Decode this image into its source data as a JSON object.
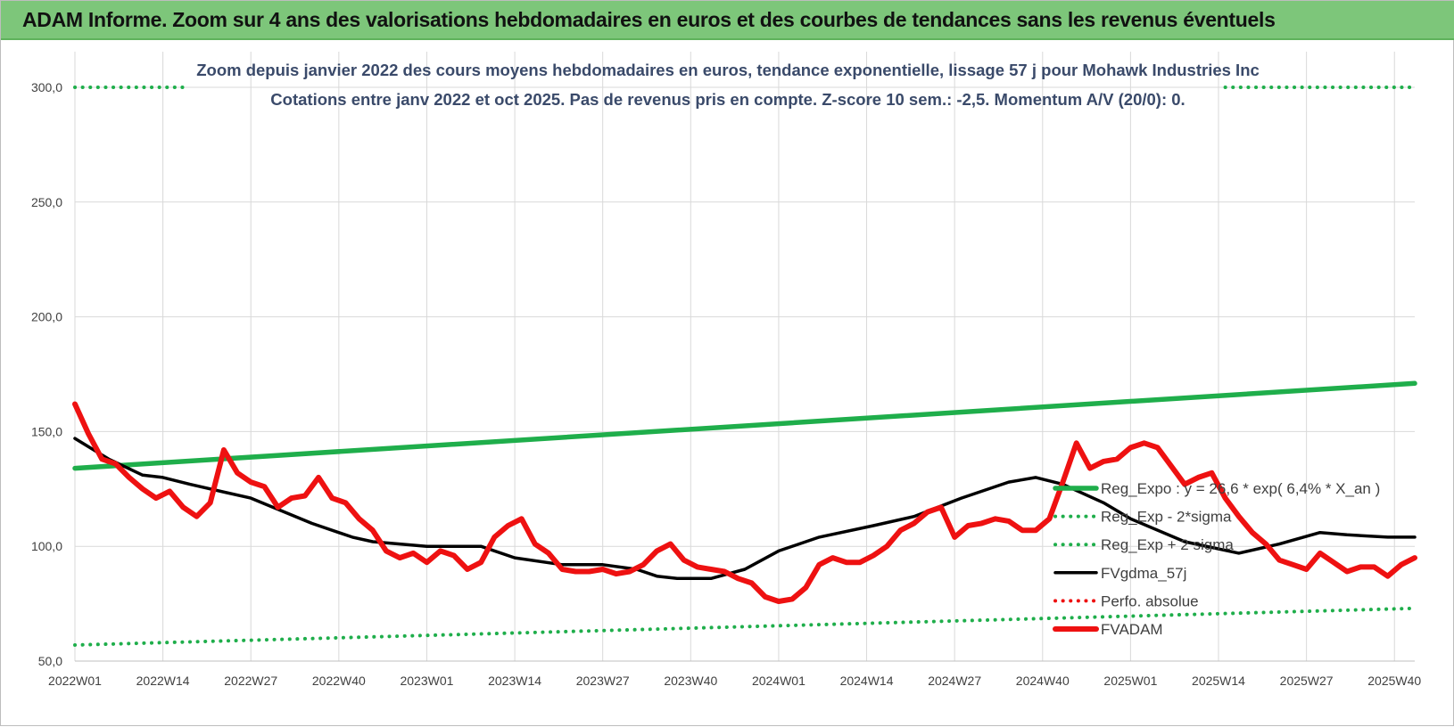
{
  "header": {
    "title": "ADAM Informe. Zoom sur 4 ans des valorisations hebdomadaires en euros et des courbes de tendances sans les revenus éventuels"
  },
  "colors": {
    "header_bg": "#7dc67a",
    "trend_green": "#1fae4b",
    "fvgdma_black": "#000000",
    "fvadam_red": "#ee1111",
    "title_text": "#3a4a6a"
  },
  "chart_data": {
    "type": "line",
    "title_line1": "Zoom depuis janvier 2022 des cours moyens hebdomadaires en euros, tendance exponentielle, lissage 57 j pour Mohawk Industries Inc",
    "title_line2": "Cotations entre janv 2022 et oct 2025. Pas de revenus pris en compte. Z-score 10 sem.: -2,5.  Momentum A/V (20/0): 0.",
    "ylim": [
      50,
      300
    ],
    "y_ticks": [
      "50,0",
      "100,0",
      "150,0",
      "200,0",
      "250,0",
      "300,0"
    ],
    "x_labels": [
      "2022W01",
      "2022W14",
      "2022W27",
      "2022W40",
      "2023W01",
      "2023W14",
      "2023W27",
      "2023W40",
      "2024W01",
      "2024W14",
      "2024W27",
      "2024W40",
      "2025W01",
      "2025W14",
      "2025W27",
      "2025W40"
    ],
    "x_range_weeks": [
      0,
      198
    ],
    "legend": [
      {
        "label": "Reg_Expo : y = 26,6 * exp( 6,4% * X_an )",
        "style": "solid",
        "color": "#1fae4b"
      },
      {
        "label": "Reg_Exp - 2*sigma",
        "style": "dotted",
        "color": "#1fae4b"
      },
      {
        "label": "Reg_Exp + 2 sigma",
        "style": "dotted",
        "color": "#1fae4b"
      },
      {
        "label": "FVgdma_57j",
        "style": "solid",
        "color": "#000000"
      },
      {
        "label": "Perfo. absolue",
        "style": "dotted",
        "color": "#ee1111"
      },
      {
        "label": "FVADAM",
        "style": "solid",
        "color": "#ee1111"
      }
    ],
    "series": [
      {
        "name": "Reg_Expo",
        "color": "#1fae4b",
        "style": "solid",
        "x": [
          0,
          198
        ],
        "values": [
          134,
          171
        ]
      },
      {
        "name": "Reg_Exp - 2*sigma",
        "color": "#1fae4b",
        "style": "dotted",
        "x": [
          0,
          198
        ],
        "values": [
          57,
          73
        ]
      },
      {
        "name": "Reg_Exp + 2 sigma",
        "color": "#1fae4b",
        "style": "dotted",
        "x": [
          0,
          17,
          198
        ],
        "values": [
          300,
          300,
          300
        ],
        "visible_ranges": [
          [
            0,
            17
          ],
          [
            170,
            198
          ]
        ]
      },
      {
        "name": "FVgdma_57j",
        "color": "#000000",
        "style": "solid",
        "x": [
          0,
          5,
          10,
          13,
          17,
          26,
          35,
          41,
          44,
          52,
          60,
          65,
          72,
          78,
          83,
          86,
          89,
          94,
          99,
          104,
          110,
          118,
          124,
          131,
          138,
          142,
          146,
          152,
          156,
          164,
          172,
          178,
          184,
          188,
          194,
          198
        ],
        "values": [
          147,
          138,
          131,
          130,
          127,
          121,
          110,
          104,
          102,
          100,
          100,
          95,
          92,
          92,
          90,
          87,
          86,
          86,
          90,
          98,
          104,
          109,
          113,
          121,
          128,
          130,
          127,
          119,
          112,
          102,
          97,
          101,
          106,
          105,
          104,
          104
        ]
      },
      {
        "name": "FVADAM",
        "color": "#ee1111",
        "style": "solid",
        "x": [
          0,
          2,
          4,
          6,
          8,
          10,
          12,
          14,
          16,
          18,
          20,
          22,
          24,
          26,
          28,
          30,
          32,
          34,
          36,
          38,
          40,
          42,
          44,
          46,
          48,
          50,
          52,
          54,
          56,
          58,
          60,
          62,
          64,
          66,
          68,
          70,
          72,
          74,
          76,
          78,
          80,
          82,
          84,
          86,
          88,
          90,
          92,
          94,
          96,
          98,
          100,
          102,
          104,
          106,
          108,
          110,
          112,
          114,
          116,
          118,
          120,
          122,
          124,
          126,
          128,
          130,
          132,
          134,
          136,
          138,
          140,
          142,
          144,
          146,
          148,
          150,
          152,
          154,
          156,
          158,
          160,
          162,
          164,
          166,
          168,
          170,
          172,
          174,
          176,
          178,
          180,
          182,
          184,
          186,
          188,
          190,
          192,
          194,
          196,
          198
        ],
        "values": [
          162,
          149,
          138,
          136,
          130,
          125,
          121,
          124,
          117,
          113,
          119,
          142,
          132,
          128,
          126,
          117,
          121,
          122,
          130,
          121,
          119,
          112,
          107,
          98,
          95,
          97,
          93,
          98,
          96,
          90,
          93,
          104,
          109,
          112,
          101,
          97,
          90,
          89,
          89,
          90,
          88,
          89,
          92,
          98,
          101,
          94,
          91,
          90,
          89,
          86,
          84,
          78,
          76,
          77,
          82,
          92,
          95,
          93,
          93,
          96,
          100,
          107,
          110,
          115,
          117,
          104,
          109,
          110,
          112,
          111,
          107,
          107,
          112,
          128,
          145,
          134,
          137,
          138,
          143,
          145,
          143,
          135,
          127,
          130,
          132,
          121,
          113,
          106,
          101,
          94,
          92,
          90,
          97,
          93,
          89,
          91,
          91,
          87,
          92,
          95
        ]
      }
    ]
  }
}
